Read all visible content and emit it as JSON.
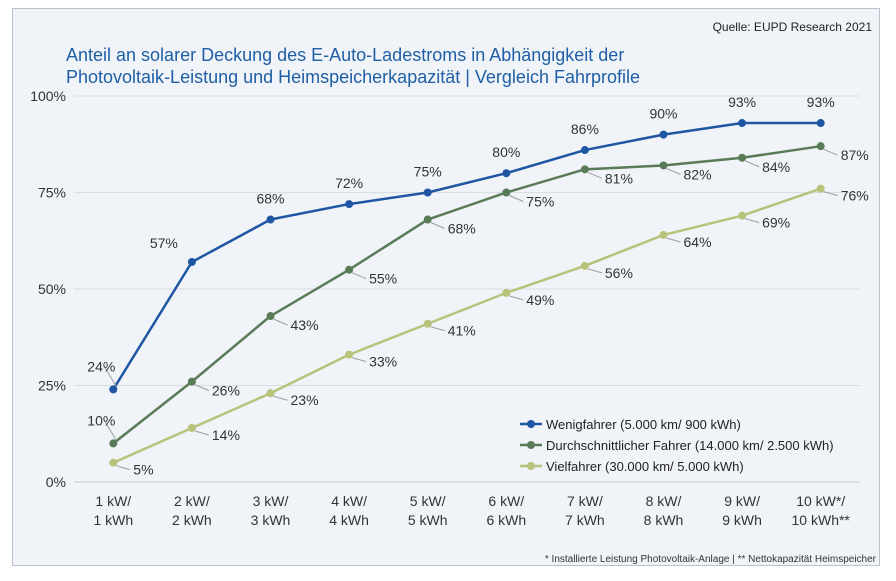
{
  "source": "Quelle: EUPD Research 2021",
  "footnote": "* Installierte Leistung Photovoltaik-Anlage | ** Nettokapazität Heimspeicher",
  "colors": {
    "series1": "#1f56a3",
    "series2": "#5a7b58",
    "series3": "#b7c27a",
    "title": "#1f5fa5",
    "panel": "#f0f3f7"
  },
  "chart_data": {
    "type": "line",
    "title_lines": [
      "Anteil an solarer Deckung des E-Auto-Ladestroms in Abhängigkeit der",
      "Photovoltaik-Leistung und Heimspeicherkapazität | Vergleich Fahrprofile"
    ],
    "categories": [
      [
        "1 kW/",
        "1 kWh"
      ],
      [
        "2 kW/",
        "2 kWh"
      ],
      [
        "3 kW/",
        "3 kWh"
      ],
      [
        "4 kW/",
        "4 kWh"
      ],
      [
        "5 kW/",
        "5 kWh"
      ],
      [
        "6 kW/",
        "6 kWh"
      ],
      [
        "7 kW/",
        "7 kWh"
      ],
      [
        "8 kW/",
        "8 kWh"
      ],
      [
        "9 kW/",
        "9 kWh"
      ],
      [
        "10 kW*/",
        "10 kWh**"
      ]
    ],
    "ylim": [
      0,
      100
    ],
    "yticks": [
      0,
      25,
      50,
      75,
      100
    ],
    "ytick_labels": [
      "0%",
      "25%",
      "50%",
      "75%",
      "100%"
    ],
    "grid": true,
    "legend_position": "bottom-right",
    "series": [
      {
        "name": "Wenigfahrer (5.000 km/ 900 kWh)",
        "values": [
          24,
          57,
          68,
          72,
          75,
          80,
          86,
          90,
          93,
          93
        ],
        "labels": [
          "24%",
          "57%",
          "68%",
          "72%",
          "75%",
          "80%",
          "86%",
          "90%",
          "93%",
          "93%"
        ]
      },
      {
        "name": "Durchschnittlicher Fahrer (14.000 km/ 2.500 kWh)",
        "values": [
          10,
          26,
          43,
          55,
          68,
          75,
          81,
          82,
          84,
          87
        ],
        "labels": [
          "10%",
          "26%",
          "43%",
          "55%",
          "68%",
          "75%",
          "81%",
          "82%",
          "84%",
          "87%"
        ]
      },
      {
        "name": "Vielfahrer (30.000 km/ 5.000 kWh)",
        "values": [
          5,
          14,
          23,
          33,
          41,
          49,
          56,
          64,
          69,
          76
        ],
        "labels": [
          "5%",
          "14%",
          "23%",
          "33%",
          "41%",
          "49%",
          "56%",
          "64%",
          "69%",
          "76%"
        ]
      }
    ]
  }
}
